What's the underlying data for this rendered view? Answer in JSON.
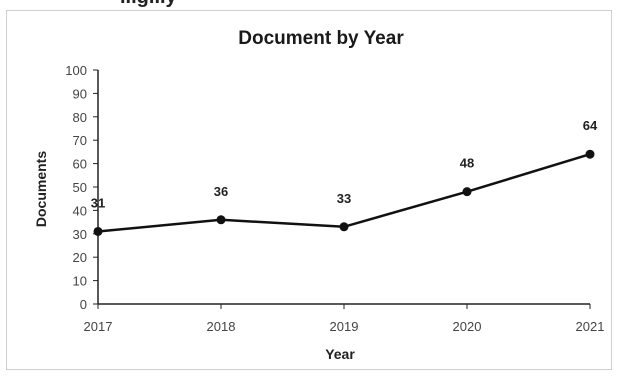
{
  "chart_data": {
    "type": "line",
    "title": "Document by Year",
    "top_cut_text": "...g...y",
    "xlabel": "Year",
    "ylabel": "Documents",
    "categories": [
      "2017",
      "2018",
      "2019",
      "2020",
      "2021"
    ],
    "values": [
      31,
      36,
      33,
      48,
      64
    ],
    "ylim": [
      0,
      100
    ],
    "yticks": [
      0,
      10,
      20,
      30,
      40,
      50,
      60,
      70,
      80,
      90,
      100
    ],
    "grid": false,
    "legend": "none",
    "line_color": "#111111",
    "marker": "circle"
  }
}
